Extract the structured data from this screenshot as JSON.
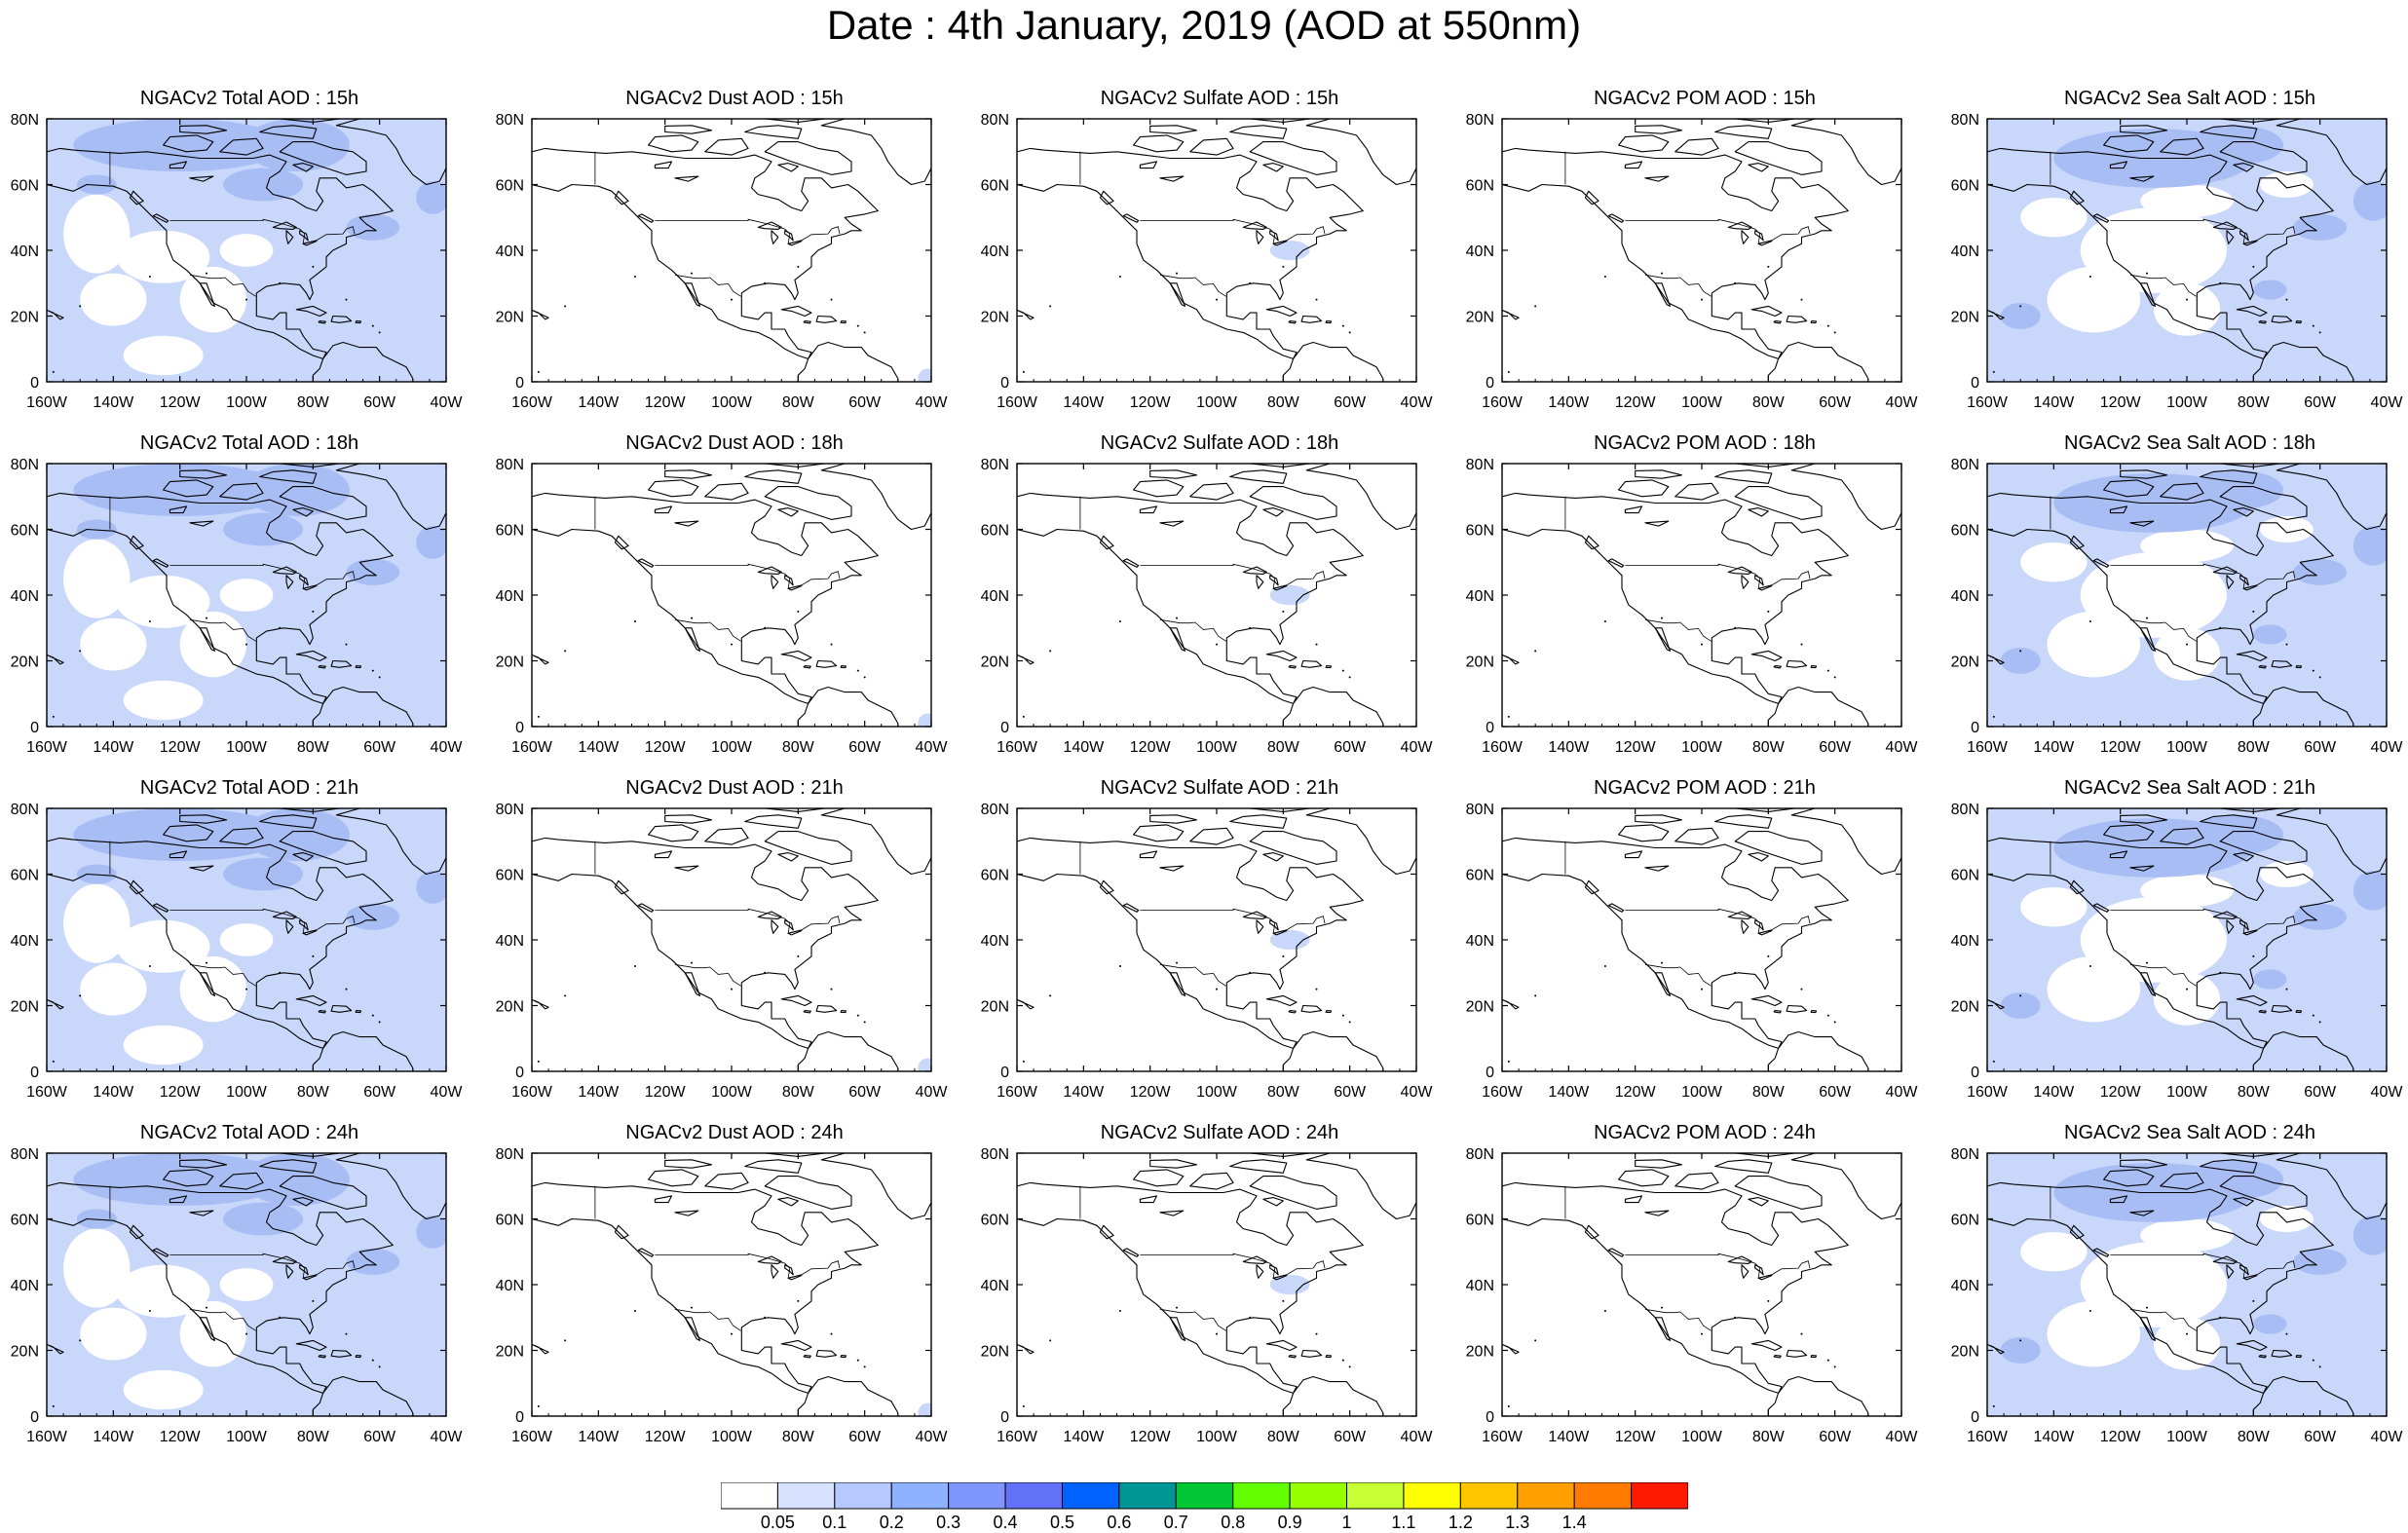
{
  "title": "Date : 4th January, 2019 (AOD at 550nm)",
  "colors": {
    "ocean_tint": "#c9d7fb",
    "ocean_strong": "#a9bdf5",
    "outline": "#000000"
  },
  "axes": {
    "lon_ticks": [
      "160W",
      "140W",
      "120W",
      "100W",
      "80W",
      "60W",
      "40W"
    ],
    "lat_ticks": [
      "80N",
      "60N",
      "40N",
      "20N",
      "0"
    ]
  },
  "panels": [
    [
      {
        "title": "NGACv2 Total AOD : 15h",
        "pattern": "total"
      },
      {
        "title": "NGACv2 Dust AOD : 15h",
        "pattern": "dust"
      },
      {
        "title": "NGACv2 Sulfate AOD : 15h",
        "pattern": "sulfate"
      },
      {
        "title": "NGACv2 POM AOD : 15h",
        "pattern": "pom"
      },
      {
        "title": "NGACv2 Sea Salt AOD : 15h",
        "pattern": "seasalt"
      }
    ],
    [
      {
        "title": "NGACv2 Total AOD : 18h",
        "pattern": "total"
      },
      {
        "title": "NGACv2 Dust AOD : 18h",
        "pattern": "dust"
      },
      {
        "title": "NGACv2 Sulfate AOD : 18h",
        "pattern": "sulfate"
      },
      {
        "title": "NGACv2 POM AOD : 18h",
        "pattern": "pom"
      },
      {
        "title": "NGACv2 Sea Salt AOD : 18h",
        "pattern": "seasalt"
      }
    ],
    [
      {
        "title": "NGACv2 Total AOD : 21h",
        "pattern": "total"
      },
      {
        "title": "NGACv2 Dust AOD : 21h",
        "pattern": "dust"
      },
      {
        "title": "NGACv2 Sulfate AOD : 21h",
        "pattern": "sulfate"
      },
      {
        "title": "NGACv2 POM AOD : 21h",
        "pattern": "pom"
      },
      {
        "title": "NGACv2 Sea Salt AOD : 21h",
        "pattern": "seasalt"
      }
    ],
    [
      {
        "title": "NGACv2 Total AOD : 24h",
        "pattern": "total"
      },
      {
        "title": "NGACv2 Dust AOD : 24h",
        "pattern": "dust"
      },
      {
        "title": "NGACv2 Sulfate AOD : 24h",
        "pattern": "sulfate"
      },
      {
        "title": "NGACv2 POM AOD : 24h",
        "pattern": "pom"
      },
      {
        "title": "NGACv2 Sea Salt  AOD : 24h",
        "pattern": "seasalt"
      }
    ]
  ],
  "colorbar": {
    "colors": [
      "#ffffff",
      "#d6e2ff",
      "#b5c9ff",
      "#8eb2ff",
      "#7f96ff",
      "#6370f8",
      "#0062ff",
      "#009696",
      "#00c633",
      "#63ff00",
      "#96ff00",
      "#c6ff33",
      "#ffff00",
      "#ffc600",
      "#ffa000",
      "#ff7c00",
      "#ff1900"
    ],
    "labels": [
      "0.05",
      "0.1",
      "0.2",
      "0.3",
      "0.4",
      "0.5",
      "0.6",
      "0.7",
      "0.8",
      "0.9",
      "1",
      "1.1",
      "1.2",
      "1.3",
      "1.4"
    ]
  }
}
